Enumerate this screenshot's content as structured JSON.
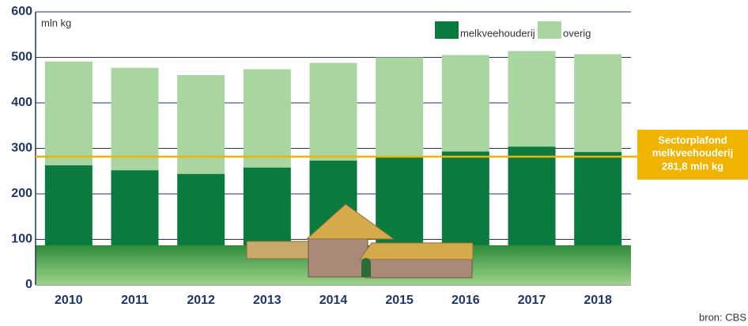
{
  "chart_data": {
    "type": "stacked_bar",
    "y_label": "mln kg",
    "categories": [
      "2010",
      "2011",
      "2012",
      "2013",
      "2014",
      "2015",
      "2016",
      "2017",
      "2018"
    ],
    "series": [
      {
        "name": "melkveehouderij",
        "color": "#0b7a3e",
        "values": [
          263,
          252,
          244,
          258,
          273,
          281,
          293,
          304,
          292
        ]
      },
      {
        "name": "overig",
        "color": "#a8d5a0",
        "values": [
          228,
          225,
          217,
          216,
          215,
          219,
          212,
          210,
          215
        ]
      }
    ],
    "ylim": [
      0,
      600
    ],
    "yticks": [
      0,
      100,
      200,
      300,
      400,
      500,
      600
    ],
    "grid": true,
    "reference_line": {
      "value": 281.8,
      "color": "#f0b400",
      "title": "Sectorplafond",
      "subtitle": "melkveehouderij",
      "label": "281,8 mln kg"
    },
    "source": "bron: CBS"
  }
}
